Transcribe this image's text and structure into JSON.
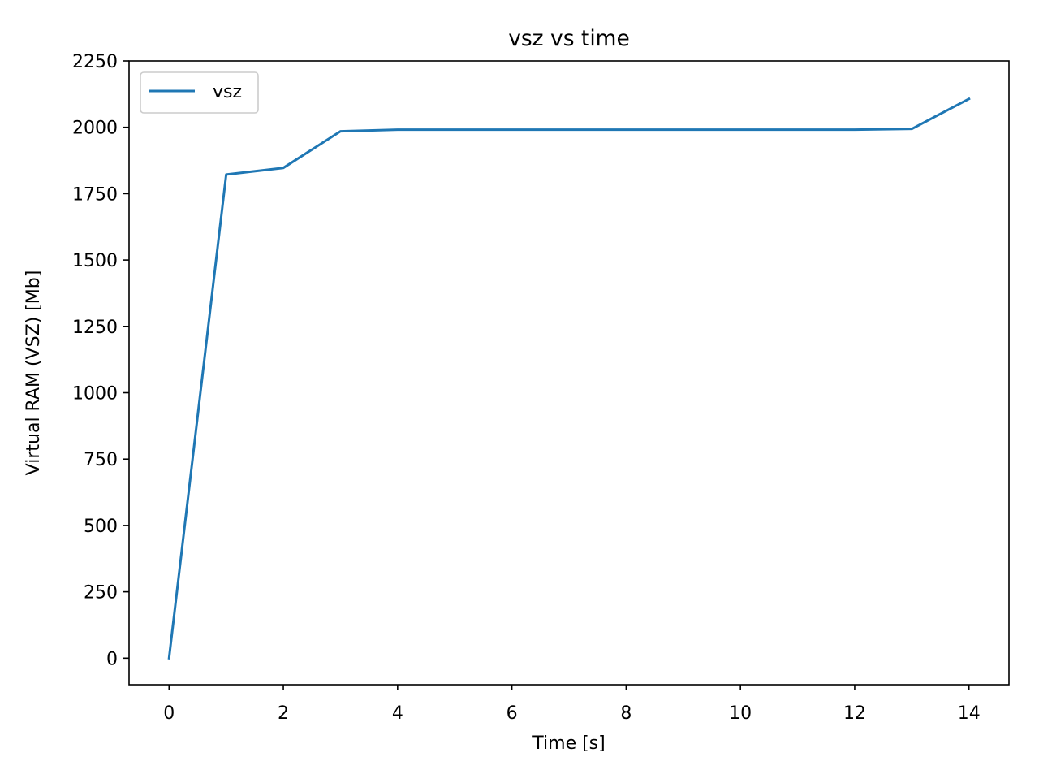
{
  "chart_data": {
    "type": "line",
    "title": "vsz vs time",
    "xlabel": "Time [s]",
    "ylabel": "Virtual RAM (VSZ) [Mb]",
    "xlim": [
      -0.7,
      14.7
    ],
    "ylim": [
      -100,
      2250
    ],
    "xticks": [
      0,
      2,
      4,
      6,
      8,
      10,
      12,
      14
    ],
    "xtick_labels": [
      "0",
      "2",
      "4",
      "6",
      "8",
      "10",
      "12",
      "14"
    ],
    "yticks": [
      0,
      250,
      500,
      750,
      1000,
      1250,
      1500,
      1750,
      2000,
      2250
    ],
    "ytick_labels": [
      "0",
      "250",
      "500",
      "750",
      "1000",
      "1250",
      "1500",
      "1750",
      "2000",
      "2250"
    ],
    "grid": false,
    "legend_position": "upper-left",
    "series": [
      {
        "name": "vsz",
        "color": "#1f77b4",
        "x": [
          0,
          1,
          2,
          3,
          4,
          5,
          6,
          7,
          8,
          9,
          10,
          11,
          12,
          13,
          14
        ],
        "y": [
          0,
          1822,
          1847,
          1985,
          1991,
          1991,
          1991,
          1991,
          1991,
          1991,
          1991,
          1991,
          1991,
          1994,
          2107
        ]
      }
    ]
  }
}
